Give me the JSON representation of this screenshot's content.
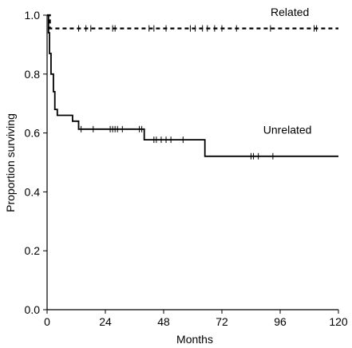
{
  "chart_data": {
    "type": "line",
    "title": "",
    "xlabel": "Months",
    "ylabel": "Proportion surviving",
    "xlim": [
      0,
      120
    ],
    "ylim": [
      0,
      1.0
    ],
    "x_ticks": [
      0,
      24,
      48,
      72,
      96,
      120
    ],
    "x_tick_labels": [
      "0",
      "24",
      "48",
      "72",
      "96",
      "120"
    ],
    "y_ticks": [
      0,
      0.2,
      0.4,
      0.6,
      0.8,
      1.0
    ],
    "y_tick_labels": [
      "0.0",
      "0.2",
      "0.4",
      "0.6",
      "0.8",
      "1.0"
    ],
    "grid": false,
    "legend": "none",
    "series": [
      {
        "name": "Related",
        "style": "dashed",
        "color": "#000000",
        "steps": [
          [
            0,
            1.0
          ],
          [
            1.2,
            1.0
          ],
          [
            1.2,
            0.955
          ],
          [
            120,
            0.955
          ]
        ],
        "censor_x": [
          13,
          16,
          18,
          27,
          28,
          42,
          44,
          49,
          59,
          61,
          64,
          66,
          69,
          72,
          78,
          92,
          110,
          111
        ]
      },
      {
        "name": "Unrelated",
        "style": "solid",
        "color": "#000000",
        "steps": [
          [
            0,
            1.0
          ],
          [
            0.6,
            1.0
          ],
          [
            0.6,
            0.94
          ],
          [
            1.0,
            0.94
          ],
          [
            1.0,
            0.87
          ],
          [
            1.6,
            0.87
          ],
          [
            1.6,
            0.8
          ],
          [
            2.6,
            0.8
          ],
          [
            2.6,
            0.74
          ],
          [
            3.2,
            0.74
          ],
          [
            3.2,
            0.68
          ],
          [
            4.2,
            0.68
          ],
          [
            4.2,
            0.66
          ],
          [
            10.5,
            0.66
          ],
          [
            10.5,
            0.64
          ],
          [
            13,
            0.64
          ],
          [
            13,
            0.613
          ],
          [
            40,
            0.613
          ],
          [
            40,
            0.577
          ],
          [
            65,
            0.577
          ],
          [
            65,
            0.521
          ],
          [
            120,
            0.521
          ]
        ],
        "censor_x": [
          14,
          19,
          26,
          27,
          28,
          29,
          31,
          38,
          39,
          44,
          45,
          47,
          49,
          51,
          56,
          84,
          85,
          87,
          93
        ]
      }
    ],
    "annotations": [
      {
        "text": "Related",
        "x": 100,
        "y": 1.0
      },
      {
        "text": "Unrelated",
        "x": 99,
        "y": 0.6
      }
    ]
  }
}
